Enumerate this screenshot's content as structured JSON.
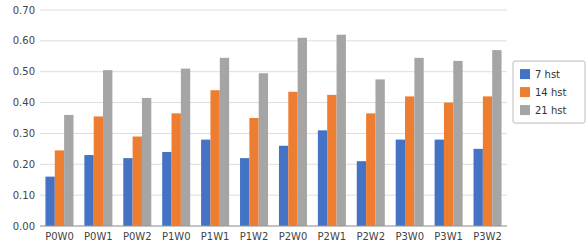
{
  "chart_data": {
    "type": "bar",
    "categories": [
      "P0W0",
      "P0W1",
      "P0W2",
      "P1W0",
      "P1W1",
      "P1W2",
      "P2W0",
      "P2W1",
      "P2W2",
      "P3W0",
      "P3W1",
      "P3W2"
    ],
    "series": [
      {
        "name": "7 hst",
        "color": "#4472C4",
        "values": [
          0.16,
          0.23,
          0.22,
          0.24,
          0.28,
          0.22,
          0.26,
          0.31,
          0.21,
          0.28,
          0.28,
          0.25
        ]
      },
      {
        "name": "14 hst",
        "color": "#ED7D31",
        "values": [
          0.245,
          0.355,
          0.29,
          0.365,
          0.44,
          0.35,
          0.435,
          0.425,
          0.365,
          0.42,
          0.4,
          0.42
        ]
      },
      {
        "name": "21 hst",
        "color": "#A5A5A5",
        "values": [
          0.36,
          0.505,
          0.415,
          0.51,
          0.545,
          0.495,
          0.61,
          0.62,
          0.475,
          0.545,
          0.535,
          0.57
        ]
      }
    ],
    "ylim": [
      0.0,
      0.7
    ],
    "yticks": [
      {
        "value": 0.0,
        "label": "0.00"
      },
      {
        "value": 0.1,
        "label": "0.10"
      },
      {
        "value": 0.2,
        "label": "0.20"
      },
      {
        "value": 0.3,
        "label": "0.30"
      },
      {
        "value": 0.4,
        "label": "0.40"
      },
      {
        "value": 0.5,
        "label": "0.50"
      },
      {
        "value": 0.6,
        "label": "0.60"
      },
      {
        "value": 0.7,
        "label": "0.70"
      }
    ],
    "grid": true,
    "legend": "right"
  }
}
